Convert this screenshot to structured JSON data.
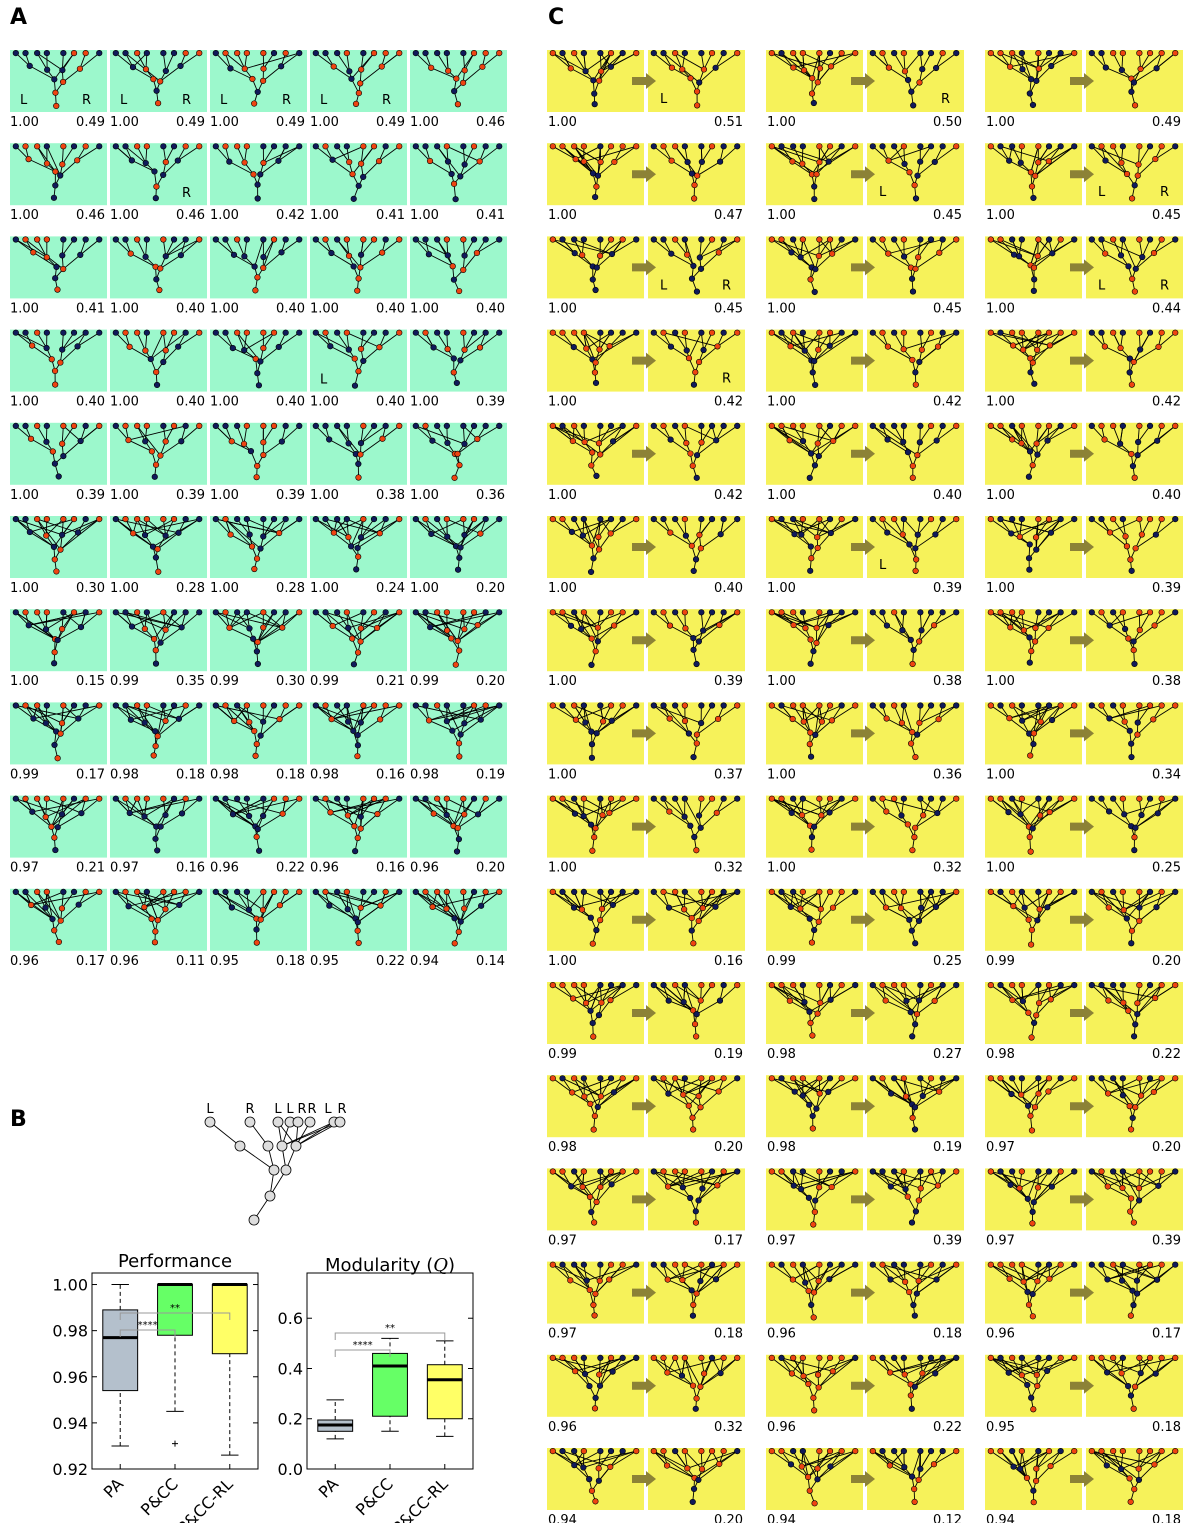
{
  "panel_labels": {
    "a": "A",
    "b": "B",
    "c": "C"
  },
  "colors": {
    "panel_a_bg": "#9cf8cc",
    "panel_c_bg": "#f6f25a",
    "node_red": "#ee4411",
    "node_blue": "#101a5a",
    "arrow": "#8c8236",
    "box_pa": "#b4c0cc",
    "box_pcc": "#66ff66",
    "box_pccrl": "#ffff66"
  },
  "panel_a": {
    "tiles": [
      {
        "left": "1.00",
        "right": "0.49",
        "tags": [
          "L",
          "R"
        ]
      },
      {
        "left": "1.00",
        "right": "0.49",
        "tags": [
          "L",
          "R"
        ]
      },
      {
        "left": "1.00",
        "right": "0.49",
        "tags": [
          "L",
          "R"
        ]
      },
      {
        "left": "1.00",
        "right": "0.49",
        "tags": [
          "L",
          "R"
        ]
      },
      {
        "left": "1.00",
        "right": "0.46",
        "tags": []
      },
      {
        "left": "1.00",
        "right": "0.46",
        "tags": []
      },
      {
        "left": "1.00",
        "right": "0.46",
        "tags": [
          "",
          "R"
        ]
      },
      {
        "left": "1.00",
        "right": "0.42",
        "tags": []
      },
      {
        "left": "1.00",
        "right": "0.41",
        "tags": []
      },
      {
        "left": "1.00",
        "right": "0.41",
        "tags": []
      },
      {
        "left": "1.00",
        "right": "0.41",
        "tags": []
      },
      {
        "left": "1.00",
        "right": "0.40",
        "tags": []
      },
      {
        "left": "1.00",
        "right": "0.40",
        "tags": []
      },
      {
        "left": "1.00",
        "right": "0.40",
        "tags": []
      },
      {
        "left": "1.00",
        "right": "0.40",
        "tags": []
      },
      {
        "left": "1.00",
        "right": "0.40",
        "tags": []
      },
      {
        "left": "1.00",
        "right": "0.40",
        "tags": []
      },
      {
        "left": "1.00",
        "right": "0.40",
        "tags": []
      },
      {
        "left": "1.00",
        "right": "0.40",
        "tags": [
          "L",
          ""
        ]
      },
      {
        "left": "1.00",
        "right": "0.39",
        "tags": []
      },
      {
        "left": "1.00",
        "right": "0.39",
        "tags": []
      },
      {
        "left": "1.00",
        "right": "0.39",
        "tags": []
      },
      {
        "left": "1.00",
        "right": "0.39",
        "tags": []
      },
      {
        "left": "1.00",
        "right": "0.38",
        "tags": []
      },
      {
        "left": "1.00",
        "right": "0.36",
        "tags": []
      },
      {
        "left": "1.00",
        "right": "0.30",
        "tags": []
      },
      {
        "left": "1.00",
        "right": "0.28",
        "tags": []
      },
      {
        "left": "1.00",
        "right": "0.28",
        "tags": []
      },
      {
        "left": "1.00",
        "right": "0.24",
        "tags": []
      },
      {
        "left": "1.00",
        "right": "0.20",
        "tags": []
      },
      {
        "left": "1.00",
        "right": "0.15",
        "tags": []
      },
      {
        "left": "0.99",
        "right": "0.35",
        "tags": []
      },
      {
        "left": "0.99",
        "right": "0.30",
        "tags": []
      },
      {
        "left": "0.99",
        "right": "0.21",
        "tags": []
      },
      {
        "left": "0.99",
        "right": "0.20",
        "tags": []
      },
      {
        "left": "0.99",
        "right": "0.17",
        "tags": []
      },
      {
        "left": "0.98",
        "right": "0.18",
        "tags": []
      },
      {
        "left": "0.98",
        "right": "0.18",
        "tags": []
      },
      {
        "left": "0.98",
        "right": "0.16",
        "tags": []
      },
      {
        "left": "0.98",
        "right": "0.19",
        "tags": []
      },
      {
        "left": "0.97",
        "right": "0.21",
        "tags": []
      },
      {
        "left": "0.97",
        "right": "0.16",
        "tags": []
      },
      {
        "left": "0.96",
        "right": "0.22",
        "tags": []
      },
      {
        "left": "0.96",
        "right": "0.16",
        "tags": []
      },
      {
        "left": "0.96",
        "right": "0.20",
        "tags": []
      },
      {
        "left": "0.96",
        "right": "0.17",
        "tags": []
      },
      {
        "left": "0.96",
        "right": "0.11",
        "tags": []
      },
      {
        "left": "0.95",
        "right": "0.18",
        "tags": []
      },
      {
        "left": "0.95",
        "right": "0.22",
        "tags": []
      },
      {
        "left": "0.94",
        "right": "0.14",
        "tags": []
      }
    ]
  },
  "panel_c": {
    "pairs": [
      {
        "left": "1.00",
        "right": "0.51",
        "tags": [
          "L",
          ""
        ]
      },
      {
        "left": "1.00",
        "right": "0.50",
        "tags": [
          "",
          "R"
        ]
      },
      {
        "left": "1.00",
        "right": "0.49",
        "tags": []
      },
      {
        "left": "1.00",
        "right": "0.47",
        "tags": []
      },
      {
        "left": "1.00",
        "right": "0.45",
        "tags": [
          "L",
          ""
        ]
      },
      {
        "left": "1.00",
        "right": "0.45",
        "tags": [
          "L",
          "R"
        ]
      },
      {
        "left": "1.00",
        "right": "0.45",
        "tags": [
          "L",
          "R"
        ]
      },
      {
        "left": "1.00",
        "right": "0.45",
        "tags": []
      },
      {
        "left": "1.00",
        "right": "0.44",
        "tags": [
          "L",
          "R"
        ]
      },
      {
        "left": "1.00",
        "right": "0.42",
        "tags": [
          "",
          "R"
        ]
      },
      {
        "left": "1.00",
        "right": "0.42",
        "tags": []
      },
      {
        "left": "1.00",
        "right": "0.42",
        "tags": []
      },
      {
        "left": "1.00",
        "right": "0.42",
        "tags": []
      },
      {
        "left": "1.00",
        "right": "0.40",
        "tags": []
      },
      {
        "left": "1.00",
        "right": "0.40",
        "tags": []
      },
      {
        "left": "1.00",
        "right": "0.40",
        "tags": []
      },
      {
        "left": "1.00",
        "right": "0.39",
        "tags": [
          "L",
          ""
        ]
      },
      {
        "left": "1.00",
        "right": "0.39",
        "tags": []
      },
      {
        "left": "1.00",
        "right": "0.39",
        "tags": []
      },
      {
        "left": "1.00",
        "right": "0.38",
        "tags": []
      },
      {
        "left": "1.00",
        "right": "0.38",
        "tags": []
      },
      {
        "left": "1.00",
        "right": "0.37",
        "tags": []
      },
      {
        "left": "1.00",
        "right": "0.36",
        "tags": []
      },
      {
        "left": "1.00",
        "right": "0.34",
        "tags": []
      },
      {
        "left": "1.00",
        "right": "0.32",
        "tags": []
      },
      {
        "left": "1.00",
        "right": "0.32",
        "tags": []
      },
      {
        "left": "1.00",
        "right": "0.25",
        "tags": []
      },
      {
        "left": "1.00",
        "right": "0.16",
        "tags": []
      },
      {
        "left": "0.99",
        "right": "0.25",
        "tags": []
      },
      {
        "left": "0.99",
        "right": "0.20",
        "tags": []
      },
      {
        "left": "0.99",
        "right": "0.19",
        "tags": []
      },
      {
        "left": "0.98",
        "right": "0.27",
        "tags": []
      },
      {
        "left": "0.98",
        "right": "0.22",
        "tags": []
      },
      {
        "left": "0.98",
        "right": "0.20",
        "tags": []
      },
      {
        "left": "0.98",
        "right": "0.19",
        "tags": []
      },
      {
        "left": "0.97",
        "right": "0.20",
        "tags": []
      },
      {
        "left": "0.97",
        "right": "0.17",
        "tags": []
      },
      {
        "left": "0.97",
        "right": "0.39",
        "tags": []
      },
      {
        "left": "0.97",
        "right": "0.39",
        "tags": []
      },
      {
        "left": "0.97",
        "right": "0.18",
        "tags": []
      },
      {
        "left": "0.96",
        "right": "0.18",
        "tags": []
      },
      {
        "left": "0.96",
        "right": "0.17",
        "tags": []
      },
      {
        "left": "0.96",
        "right": "0.32",
        "tags": []
      },
      {
        "left": "0.96",
        "right": "0.22",
        "tags": []
      },
      {
        "left": "0.95",
        "right": "0.18",
        "tags": []
      },
      {
        "left": "0.94",
        "right": "0.20",
        "tags": []
      },
      {
        "left": "0.94",
        "right": "0.12",
        "tags": []
      },
      {
        "left": "0.94",
        "right": "0.18",
        "tags": []
      }
    ]
  },
  "panel_b": {
    "tree_labels": [
      "L",
      "R",
      "L",
      "L",
      "R",
      "R",
      "L",
      "R"
    ],
    "chart_data": [
      {
        "type": "box",
        "title": "Performance",
        "categories": [
          "PA",
          "P&CC",
          "P&CC-RL"
        ],
        "yticks": [
          "0.92",
          "0.94",
          "0.96",
          "0.98",
          "1.00"
        ],
        "ylim": [
          0.92,
          1.005
        ],
        "boxes": [
          {
            "name": "PA",
            "whisker_low": 0.93,
            "q1": 0.954,
            "median": 0.977,
            "q3": 0.989,
            "whisker_high": 1.0,
            "outliers": []
          },
          {
            "name": "P&CC",
            "whisker_low": 0.945,
            "q1": 0.978,
            "median": 1.0,
            "q3": 1.0,
            "whisker_high": 1.0,
            "outliers": [
              0.931
            ]
          },
          {
            "name": "P&CC-RL",
            "whisker_low": 0.926,
            "q1": 0.97,
            "median": 1.0,
            "q3": 1.0,
            "whisker_high": 1.0,
            "outliers": []
          }
        ],
        "significance": [
          {
            "from": "PA",
            "to": "P&CC",
            "label": "****"
          },
          {
            "from": "PA",
            "to": "P&CC-RL",
            "label": "**"
          }
        ]
      },
      {
        "type": "box",
        "title": "Modularity (",
        "title_var": "Q",
        "title_close": ")",
        "categories": [
          "PA",
          "P&CC",
          "P&CC-RL"
        ],
        "yticks": [
          "0.0",
          "0.2",
          "0.4",
          "0.6"
        ],
        "ylim": [
          0.0,
          0.78
        ],
        "boxes": [
          {
            "name": "PA",
            "whisker_low": 0.12,
            "q1": 0.15,
            "median": 0.175,
            "q3": 0.195,
            "whisker_high": 0.275,
            "outliers": []
          },
          {
            "name": "P&CC",
            "whisker_low": 0.15,
            "q1": 0.21,
            "median": 0.41,
            "q3": 0.46,
            "whisker_high": 0.52,
            "outliers": []
          },
          {
            "name": "P&CC-RL",
            "whisker_low": 0.13,
            "q1": 0.2,
            "median": 0.355,
            "q3": 0.415,
            "whisker_high": 0.51,
            "outliers": []
          }
        ],
        "significance": [
          {
            "from": "PA",
            "to": "P&CC",
            "label": "****"
          },
          {
            "from": "PA",
            "to": "P&CC-RL",
            "label": "**"
          }
        ]
      }
    ]
  }
}
